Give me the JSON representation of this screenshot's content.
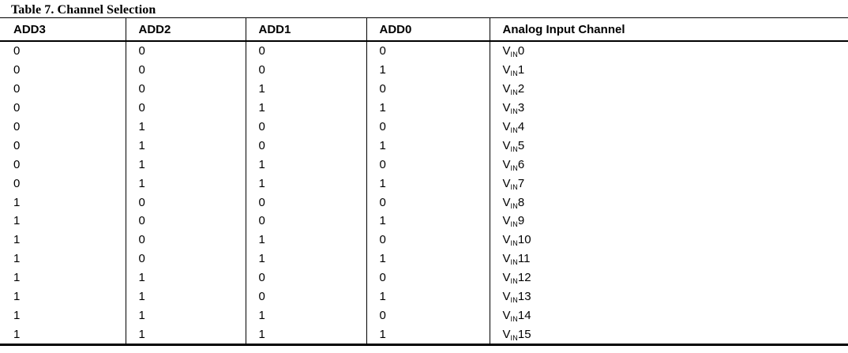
{
  "table": {
    "title": "Table 7. Channel Selection",
    "columns": [
      "ADD3",
      "ADD2",
      "ADD1",
      "ADD0",
      "Analog Input Channel"
    ],
    "rows": [
      {
        "add3": "0",
        "add2": "0",
        "add1": "0",
        "add0": "0",
        "channel": {
          "prefix": "V",
          "sub": "IN",
          "num": "0"
        }
      },
      {
        "add3": "0",
        "add2": "0",
        "add1": "0",
        "add0": "1",
        "channel": {
          "prefix": "V",
          "sub": "IN",
          "num": "1"
        }
      },
      {
        "add3": "0",
        "add2": "0",
        "add1": "1",
        "add0": "0",
        "channel": {
          "prefix": "V",
          "sub": "IN",
          "num": "2"
        }
      },
      {
        "add3": "0",
        "add2": "0",
        "add1": "1",
        "add0": "1",
        "channel": {
          "prefix": "V",
          "sub": "IN",
          "num": "3"
        }
      },
      {
        "add3": "0",
        "add2": "1",
        "add1": "0",
        "add0": "0",
        "channel": {
          "prefix": "V",
          "sub": "IN",
          "num": "4"
        }
      },
      {
        "add3": "0",
        "add2": "1",
        "add1": "0",
        "add0": "1",
        "channel": {
          "prefix": "V",
          "sub": "IN",
          "num": "5"
        }
      },
      {
        "add3": "0",
        "add2": "1",
        "add1": "1",
        "add0": "0",
        "channel": {
          "prefix": "V",
          "sub": "IN",
          "num": "6"
        }
      },
      {
        "add3": "0",
        "add2": "1",
        "add1": "1",
        "add0": "1",
        "channel": {
          "prefix": "V",
          "sub": "IN",
          "num": "7"
        }
      },
      {
        "add3": "1",
        "add2": "0",
        "add1": "0",
        "add0": "0",
        "channel": {
          "prefix": "V",
          "sub": "IN",
          "num": "8"
        }
      },
      {
        "add3": "1",
        "add2": "0",
        "add1": "0",
        "add0": "1",
        "channel": {
          "prefix": "V",
          "sub": "IN",
          "num": "9"
        }
      },
      {
        "add3": "1",
        "add2": "0",
        "add1": "1",
        "add0": "0",
        "channel": {
          "prefix": "V",
          "sub": "IN",
          "num": "10"
        }
      },
      {
        "add3": "1",
        "add2": "0",
        "add1": "1",
        "add0": "1",
        "channel": {
          "prefix": "V",
          "sub": "IN",
          "num": "11"
        }
      },
      {
        "add3": "1",
        "add2": "1",
        "add1": "0",
        "add0": "0",
        "channel": {
          "prefix": "V",
          "sub": "IN",
          "num": "12"
        }
      },
      {
        "add3": "1",
        "add2": "1",
        "add1": "0",
        "add0": "1",
        "channel": {
          "prefix": "V",
          "sub": "IN",
          "num": "13"
        }
      },
      {
        "add3": "1",
        "add2": "1",
        "add1": "1",
        "add0": "0",
        "channel": {
          "prefix": "V",
          "sub": "IN",
          "num": "14"
        }
      },
      {
        "add3": "1",
        "add2": "1",
        "add1": "1",
        "add0": "1",
        "channel": {
          "prefix": "V",
          "sub": "IN",
          "num": "15"
        }
      }
    ],
    "text_color": "#000000",
    "rule_color": "#000000",
    "background_color": "#ffffff"
  }
}
